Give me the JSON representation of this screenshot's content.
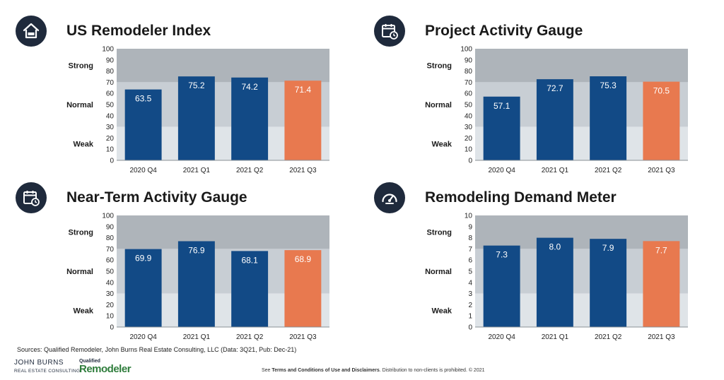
{
  "colors": {
    "bar_primary": "#124a86",
    "bar_highlight": "#e8794f",
    "band_strong": "#aeb4ba",
    "band_normal": "#c8ced4",
    "band_weak": "#dfe4e8",
    "icon_bg": "#1f2a3c"
  },
  "chart_data": [
    {
      "type": "bar",
      "title": "US Remodeler Index",
      "icon": "house-icon",
      "categories": [
        "2020 Q4",
        "2021 Q1",
        "2021 Q2",
        "2021 Q3"
      ],
      "values": [
        63.5,
        75.2,
        74.2,
        71.4
      ],
      "value_labels": [
        "63.5",
        "75.2",
        "74.2",
        "71.4"
      ],
      "highlight_index": 3,
      "ylim": [
        0,
        100
      ],
      "yticks": [
        "0",
        "10",
        "20",
        "30",
        "40",
        "50",
        "60",
        "70",
        "80",
        "90",
        "100"
      ],
      "bands": [
        {
          "label": "Strong",
          "from": 70,
          "to": 100
        },
        {
          "label": "Normal",
          "from": 30,
          "to": 70
        },
        {
          "label": "Weak",
          "from": 0,
          "to": 30
        }
      ]
    },
    {
      "type": "bar",
      "title": "Project Activity Gauge",
      "icon": "calendar-clock-icon",
      "categories": [
        "2020 Q4",
        "2021 Q1",
        "2021 Q2",
        "2021 Q3"
      ],
      "values": [
        57.1,
        72.7,
        75.3,
        70.5
      ],
      "value_labels": [
        "57.1",
        "72.7",
        "75.3",
        "70.5"
      ],
      "highlight_index": 3,
      "ylim": [
        0,
        100
      ],
      "yticks": [
        "0",
        "10",
        "20",
        "30",
        "40",
        "50",
        "60",
        "70",
        "80",
        "90",
        "100"
      ],
      "bands": [
        {
          "label": "Strong",
          "from": 70,
          "to": 100
        },
        {
          "label": "Normal",
          "from": 30,
          "to": 70
        },
        {
          "label": "Weak",
          "from": 0,
          "to": 30
        }
      ]
    },
    {
      "type": "bar",
      "title": "Near-Term Activity Gauge",
      "icon": "calendar-clock-icon",
      "categories": [
        "2020 Q4",
        "2021 Q1",
        "2021 Q2",
        "2021 Q3"
      ],
      "values": [
        69.9,
        76.9,
        68.1,
        68.9
      ],
      "value_labels": [
        "69.9",
        "76.9",
        "68.1",
        "68.9"
      ],
      "highlight_index": 3,
      "ylim": [
        0,
        100
      ],
      "yticks": [
        "0",
        "10",
        "20",
        "30",
        "40",
        "50",
        "60",
        "70",
        "80",
        "90",
        "100"
      ],
      "bands": [
        {
          "label": "Strong",
          "from": 70,
          "to": 100
        },
        {
          "label": "Normal",
          "from": 30,
          "to": 70
        },
        {
          "label": "Weak",
          "from": 0,
          "to": 30
        }
      ]
    },
    {
      "type": "bar",
      "title": "Remodeling Demand Meter",
      "icon": "speedometer-icon",
      "categories": [
        "2020 Q4",
        "2021 Q1",
        "2021 Q2",
        "2021 Q3"
      ],
      "values": [
        7.3,
        8.0,
        7.9,
        7.7
      ],
      "value_labels": [
        "7.3",
        "8.0",
        "7.9",
        "7.7"
      ],
      "highlight_index": 3,
      "ylim": [
        0,
        10
      ],
      "yticks": [
        "0",
        "1",
        "2",
        "3",
        "4",
        "5",
        "6",
        "7",
        "8",
        "9",
        "10"
      ],
      "bands": [
        {
          "label": "Strong",
          "from": 7,
          "to": 10
        },
        {
          "label": "Normal",
          "from": 3,
          "to": 7
        },
        {
          "label": "Weak",
          "from": 0,
          "to": 3
        }
      ]
    }
  ],
  "footer": {
    "sources": "Sources: Qualified Remodeler, John Burns Real Estate Consulting, LLC (Data: 3Q21, Pub: Dec-21)",
    "terms_prefix": "See ",
    "terms_bold": "Terms and Conditions of Use and Disclaimers",
    "terms_suffix": ". Distribution to non-clients is prohibited. © 2021",
    "logo_jb_top": "JOHN BURNS",
    "logo_jb_bottom": "REAL ESTATE CONSULTING",
    "logo_qr_top": "Qualified",
    "logo_qr_bottom": "Remodeler"
  }
}
